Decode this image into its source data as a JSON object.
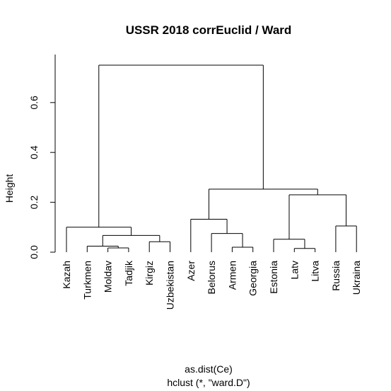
{
  "chart_data": {
    "type": "dendrogram",
    "title": "USSR 2018 corrEuclid / Ward",
    "ylabel": "Height",
    "xlabel_line1": "as.dist(Ce)",
    "xlabel_line2": "hclust (*, \"ward.D\")",
    "ylim": [
      0,
      0.75
    ],
    "yticks": [
      0.0,
      0.2,
      0.4,
      0.6
    ],
    "ytick_labels": [
      "0.0",
      "0.2",
      "0.4",
      "0.6"
    ],
    "leaves": [
      "Kazah",
      "Turkmen",
      "Moldav",
      "Tadjik",
      "Kirgiz",
      "Uzbekistan",
      "Azer",
      "Belorus",
      "Armen",
      "Georgia",
      "Estonia",
      "Latv",
      "Litva",
      "Russia",
      "Ukraina"
    ],
    "merges": [
      {
        "left": "Moldav",
        "right": "Tadjik",
        "height": 0.017
      },
      {
        "left": "Armen",
        "right": "Georgia",
        "height": 0.02
      },
      {
        "left": "Latv",
        "right": "Litva",
        "height": 0.015
      },
      {
        "left": "Turkmen",
        "right": "Moldav+Tadjik",
        "height": 0.024
      },
      {
        "left": "Kirgiz",
        "right": "Uzbekistan",
        "height": 0.042
      },
      {
        "left": "Estonia",
        "right": "Latv+Litva",
        "height": 0.052
      },
      {
        "left": "Turkmen+Moldav+Tadjik",
        "right": "Kirgiz+Uzbekistan",
        "height": 0.067
      },
      {
        "left": "Belorus",
        "right": "Armen+Georgia",
        "height": 0.075
      },
      {
        "left": "Kazah",
        "right": "Turkmen+Moldav+Tadjik+Kirgiz+Uzbekistan",
        "height": 0.1
      },
      {
        "left": "Russia",
        "right": "Ukraina",
        "height": 0.105
      },
      {
        "left": "Azer",
        "right": "Belorus+Armen+Georgia",
        "height": 0.132
      },
      {
        "left": "Estonia+Latv+Litva",
        "right": "Russia+Ukraina",
        "height": 0.23
      },
      {
        "left": "Azer+Belorus+Armen+Georgia",
        "right": "Estonia+Latv+Litva+Russia+Ukraina",
        "height": 0.253
      },
      {
        "left": "Kazah+Turkmen+Moldav+Tadjik+Kirgiz+Uzbekistan",
        "right": "Azer+Belorus+Armen+Georgia+Estonia+Latv+Litva+Russia+Ukraina",
        "height": 0.75
      }
    ]
  }
}
